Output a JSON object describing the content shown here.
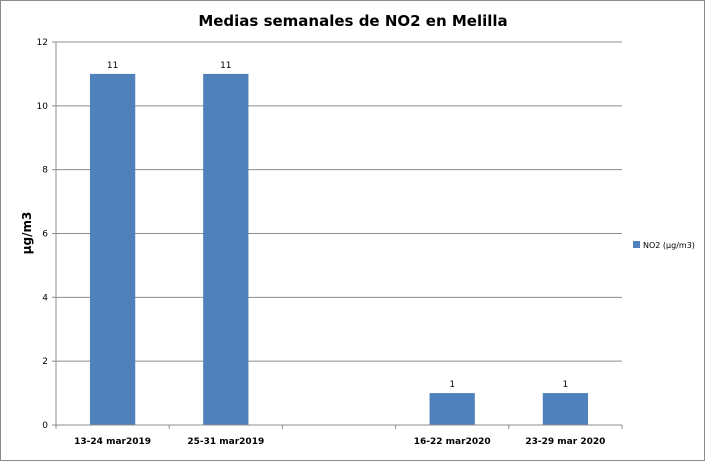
{
  "chart_data": {
    "type": "bar",
    "title": "Medias semanales de NO2 en Melilla",
    "xlabel": "",
    "ylabel": "µg/m3",
    "categories": [
      "13-24 mar2019",
      "25-31 mar2019",
      "",
      "16-22 mar2020",
      "23-29 mar 2020"
    ],
    "series": [
      {
        "name": "NO2 (µg/m3)",
        "values": [
          11,
          11,
          null,
          1,
          1
        ],
        "color": "#4f81bd"
      }
    ],
    "data_labels": [
      "11",
      "11",
      "",
      "1",
      "1"
    ],
    "ylim": [
      0,
      12
    ],
    "yticks": [
      0,
      2,
      4,
      6,
      8,
      10,
      12
    ],
    "grid": true,
    "legend_position": "right"
  }
}
